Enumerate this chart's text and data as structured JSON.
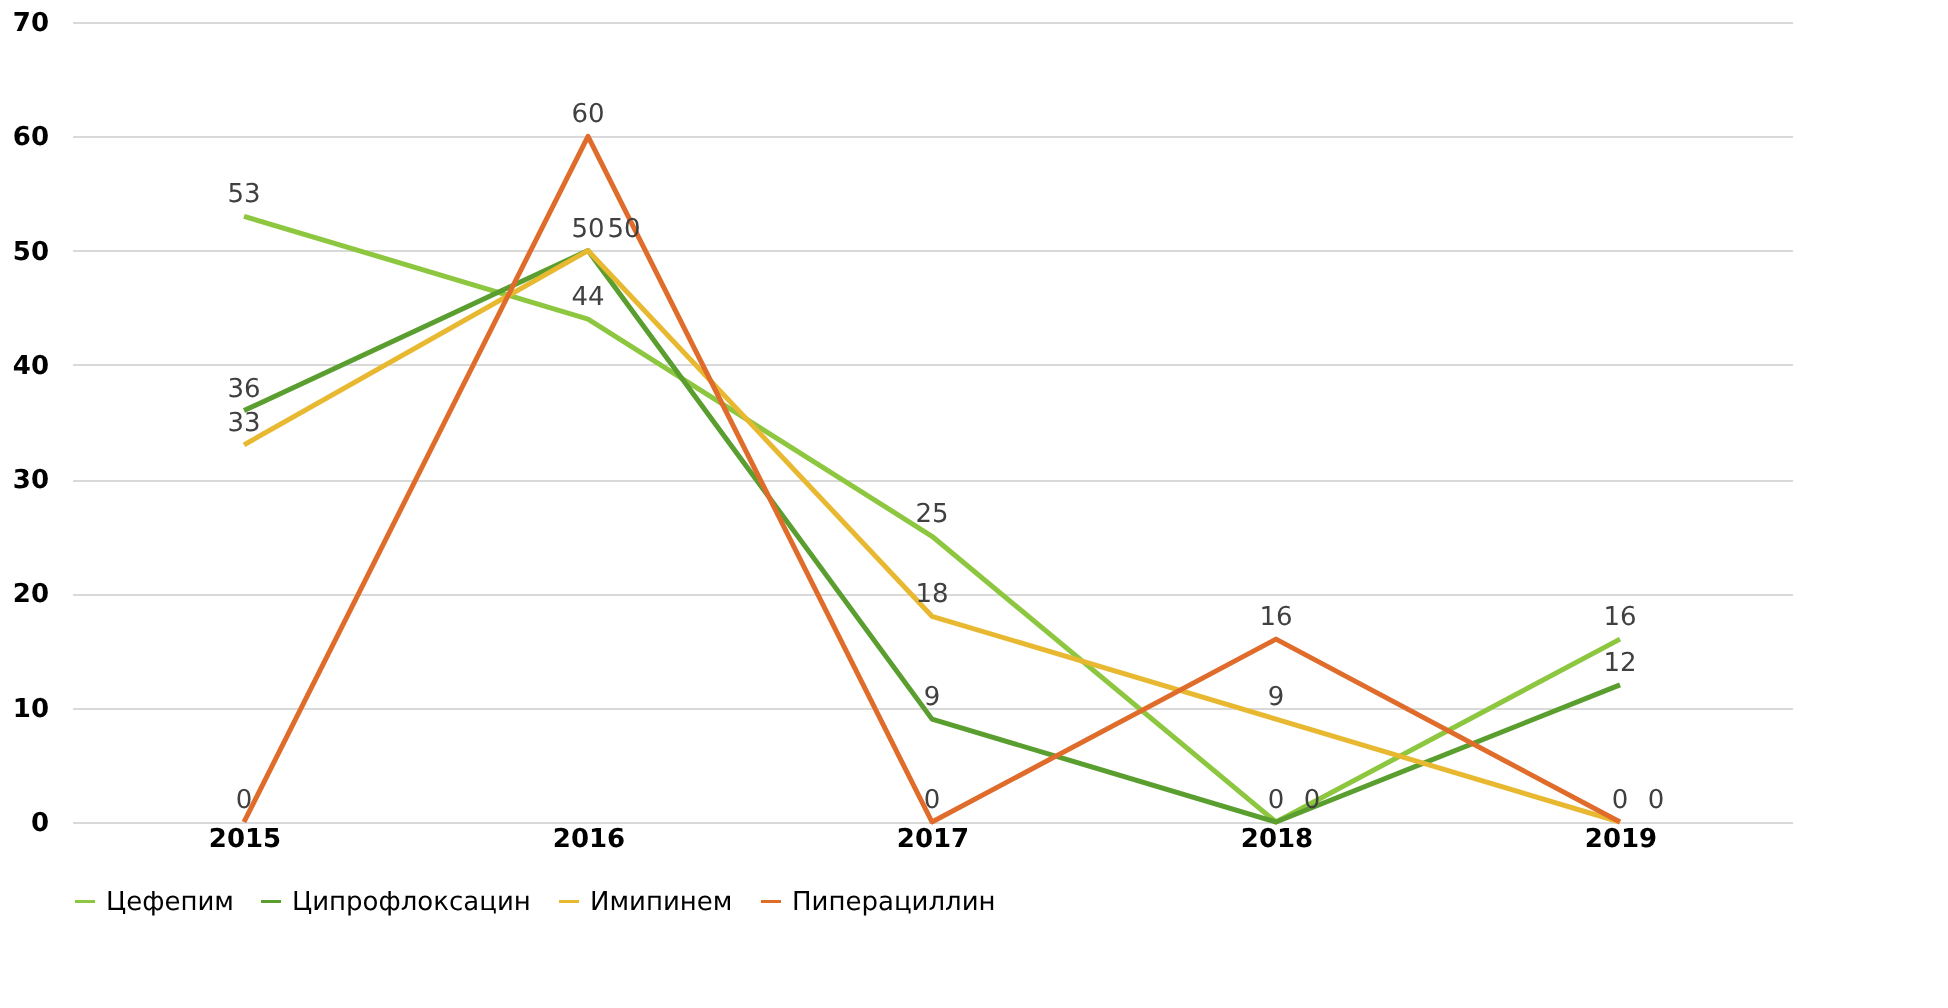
{
  "chart_data": {
    "type": "line",
    "categories": [
      "2015",
      "2016",
      "2017",
      "2018",
      "2019"
    ],
    "series": [
      {
        "name": "Цефепим",
        "color": "#8dc63f",
        "values": [
          53,
          44,
          25,
          0,
          16
        ]
      },
      {
        "name": "Ципрофлоксацин",
        "color": "#5a9e2f",
        "values": [
          36,
          50,
          9,
          0,
          12
        ]
      },
      {
        "name": "Имипинем",
        "color": "#e8b830",
        "values": [
          33,
          50,
          18,
          9,
          0
        ]
      },
      {
        "name": "Пиперациллин",
        "color": "#e06c2c",
        "values": [
          0,
          60,
          0,
          16,
          0
        ]
      }
    ],
    "ylim": [
      0,
      70
    ],
    "yticks": [
      0,
      10,
      20,
      30,
      40,
      50,
      60,
      70
    ],
    "grid": "y",
    "legend": "bottom",
    "data_labels": true,
    "marker": "none",
    "line_style": "solid"
  }
}
